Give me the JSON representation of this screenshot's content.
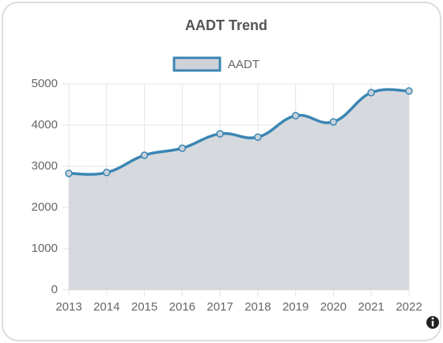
{
  "chart_data": {
    "type": "line",
    "title": "AADT Trend",
    "categories": [
      "2013",
      "2014",
      "2015",
      "2016",
      "2017",
      "2018",
      "2019",
      "2020",
      "2021",
      "2022"
    ],
    "series": [
      {
        "name": "AADT",
        "color": "#3b86b3",
        "fill": "#cfd3d8",
        "values": [
          2830,
          2850,
          3270,
          3440,
          3790,
          3710,
          4230,
          4080,
          4790,
          4830
        ]
      }
    ],
    "ylim": [
      0,
      5000
    ],
    "yticks": [
      0,
      1000,
      2000,
      3000,
      4000,
      5000
    ],
    "grid": true,
    "legend": "top"
  }
}
